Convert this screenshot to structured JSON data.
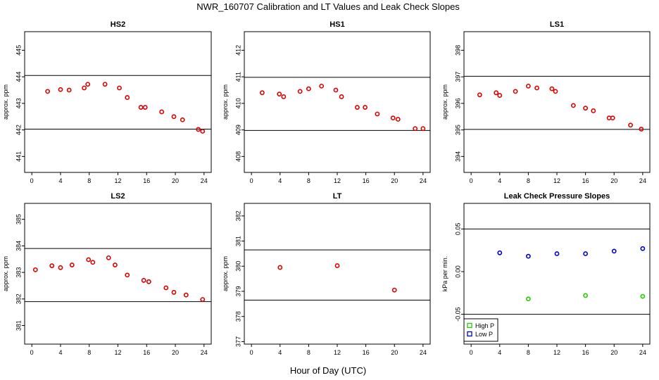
{
  "page": {
    "title": "NWR_160707  Calibration and LT Values and Leak Check Slopes",
    "xlabel": "Hour of Day (UTC)"
  },
  "chart_data": [
    {
      "type": "scatter",
      "title": "HS2",
      "ylabel": "approx. ppm",
      "xlim": [
        -1,
        25
      ],
      "ylim": [
        440.4,
        445.7
      ],
      "xticks": [
        "0",
        "4",
        "8",
        "12",
        "16",
        "20",
        "24"
      ],
      "yticks": [
        441,
        442,
        443,
        444,
        445
      ],
      "hlines": [
        442.03,
        444.05
      ],
      "series": [
        {
          "color": "#dd0000",
          "points": [
            [
              2.2,
              443.45
            ],
            [
              4.0,
              443.52
            ],
            [
              5.2,
              443.5
            ],
            [
              7.3,
              443.58
            ],
            [
              7.8,
              443.72
            ],
            [
              10.2,
              443.72
            ],
            [
              12.2,
              443.58
            ],
            [
              13.3,
              443.22
            ],
            [
              15.2,
              442.85
            ],
            [
              15.8,
              442.85
            ],
            [
              18.1,
              442.68
            ],
            [
              19.8,
              442.5
            ],
            [
              21.0,
              442.38
            ],
            [
              23.2,
              442.02
            ],
            [
              23.8,
              441.95
            ]
          ]
        }
      ]
    },
    {
      "type": "scatter",
      "title": "HS1",
      "ylabel": "approx. ppm",
      "xlim": [
        -1,
        25
      ],
      "ylim": [
        407.4,
        412.7
      ],
      "xticks": [
        "0",
        "4",
        "8",
        "12",
        "16",
        "20",
        "24"
      ],
      "yticks": [
        408,
        409,
        410,
        411,
        412
      ],
      "hlines": [
        408.98,
        410.98
      ],
      "series": [
        {
          "color": "#dd0000",
          "points": [
            [
              1.5,
              410.4
            ],
            [
              3.9,
              410.35
            ],
            [
              4.5,
              410.25
            ],
            [
              6.8,
              410.45
            ],
            [
              8.0,
              410.55
            ],
            [
              9.8,
              410.65
            ],
            [
              11.8,
              410.5
            ],
            [
              12.6,
              410.25
            ],
            [
              14.8,
              409.85
            ],
            [
              15.9,
              409.85
            ],
            [
              17.6,
              409.6
            ],
            [
              19.8,
              409.45
            ],
            [
              20.5,
              409.4
            ],
            [
              22.9,
              409.05
            ],
            [
              24.0,
              409.05
            ]
          ]
        }
      ]
    },
    {
      "type": "scatter",
      "title": "LS1",
      "ylabel": "approx. ppm",
      "xlim": [
        -1,
        25
      ],
      "ylim": [
        393.4,
        398.7
      ],
      "xticks": [
        "0",
        "4",
        "8",
        "12",
        "16",
        "20",
        "24"
      ],
      "yticks": [
        394,
        395,
        396,
        397,
        398
      ],
      "hlines": [
        395.02,
        397.02
      ],
      "series": [
        {
          "color": "#dd0000",
          "points": [
            [
              1.2,
              396.32
            ],
            [
              3.5,
              396.4
            ],
            [
              4.0,
              396.3
            ],
            [
              6.2,
              396.45
            ],
            [
              8.0,
              396.65
            ],
            [
              9.2,
              396.58
            ],
            [
              11.3,
              396.55
            ],
            [
              11.8,
              396.45
            ],
            [
              14.3,
              395.92
            ],
            [
              16.0,
              395.82
            ],
            [
              17.1,
              395.72
            ],
            [
              19.3,
              395.45
            ],
            [
              19.8,
              395.45
            ],
            [
              22.3,
              395.18
            ],
            [
              23.8,
              395.03
            ]
          ]
        }
      ]
    },
    {
      "type": "scatter",
      "title": "LS2",
      "ylabel": "approx. ppm",
      "xlim": [
        -1,
        25
      ],
      "ylim": [
        380.3,
        385.6
      ],
      "xticks": [
        "0",
        "4",
        "8",
        "12",
        "16",
        "20",
        "24"
      ],
      "yticks": [
        381,
        382,
        383,
        384,
        385
      ],
      "hlines": [
        381.9,
        383.9
      ],
      "series": [
        {
          "color": "#dd0000",
          "points": [
            [
              0.5,
              383.1
            ],
            [
              2.8,
              383.25
            ],
            [
              4.0,
              383.18
            ],
            [
              5.6,
              383.28
            ],
            [
              7.9,
              383.48
            ],
            [
              8.5,
              383.38
            ],
            [
              10.7,
              383.55
            ],
            [
              11.6,
              383.28
            ],
            [
              13.3,
              382.9
            ],
            [
              15.6,
              382.7
            ],
            [
              16.3,
              382.65
            ],
            [
              18.7,
              382.42
            ],
            [
              19.8,
              382.25
            ],
            [
              21.5,
              382.15
            ],
            [
              23.8,
              381.98
            ]
          ]
        }
      ]
    },
    {
      "type": "scatter",
      "title": "LT",
      "ylabel": "approx. ppm",
      "xlim": [
        -1,
        25
      ],
      "ylim": [
        376.9,
        382.5
      ],
      "xticks": [
        "0",
        "4",
        "8",
        "12",
        "16",
        "20",
        "24"
      ],
      "yticks": [
        377,
        378,
        379,
        380,
        381,
        382
      ],
      "hlines": [
        378.65,
        380.65
      ],
      "series": [
        {
          "color": "#dd0000",
          "points": [
            [
              4.0,
              379.95
            ],
            [
              12.0,
              380.02
            ],
            [
              20.0,
              379.05
            ]
          ]
        }
      ]
    },
    {
      "type": "scatter",
      "title": "Leak Check Pressure Slopes",
      "ylabel": "kPa per min.",
      "xlim": [
        -1,
        25
      ],
      "ylim": [
        -0.085,
        0.08
      ],
      "xticks": [
        "0",
        "4",
        "8",
        "12",
        "16",
        "20",
        "24"
      ],
      "yticks": [
        "-0.05",
        "0.00",
        "0.05"
      ],
      "yticknums": [
        -0.05,
        0.0,
        0.05
      ],
      "hlines": [
        -0.05,
        0.05
      ],
      "legend": {
        "position": "bottom-left",
        "entries": [
          {
            "label": "High P",
            "color": "#22cc00"
          },
          {
            "label": "Low P",
            "color": "#0000cc"
          }
        ]
      },
      "series": [
        {
          "name": "High P",
          "color": "#22cc00",
          "points": [
            [
              8,
              -0.032
            ],
            [
              16,
              -0.028
            ],
            [
              24,
              -0.029
            ]
          ]
        },
        {
          "name": "Low P",
          "color": "#0000cc",
          "points": [
            [
              4,
              0.022
            ],
            [
              8,
              0.018
            ],
            [
              12,
              0.021
            ],
            [
              16,
              0.021
            ],
            [
              20,
              0.024
            ],
            [
              24,
              0.027
            ]
          ]
        }
      ]
    }
  ]
}
